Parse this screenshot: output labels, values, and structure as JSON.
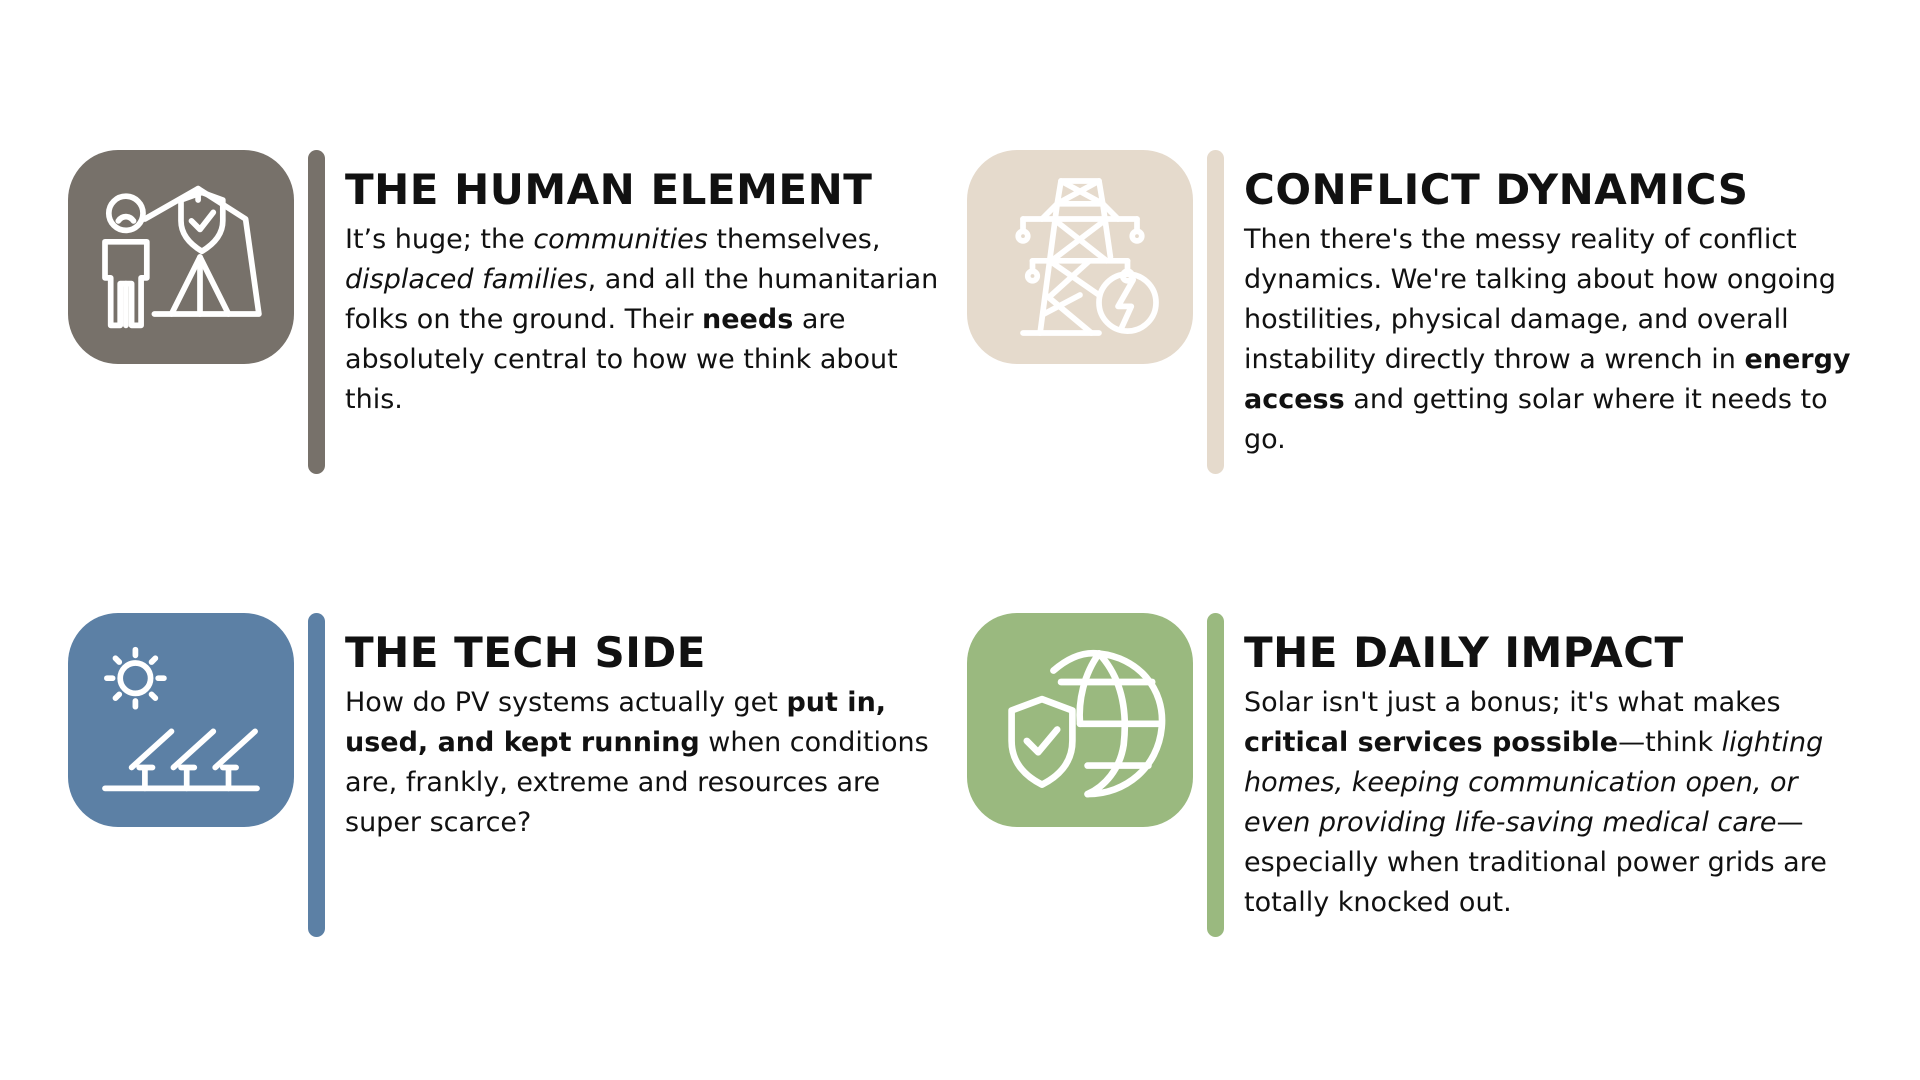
{
  "cards": [
    {
      "id": "human",
      "title": "THE HUMAN ELEMENT",
      "color": "#77716a",
      "icon": "person-shelter-shield-icon",
      "body": [
        {
          "text": "It’s huge; the ",
          "style": "normal"
        },
        {
          "text": "communities",
          "style": "italic"
        },
        {
          "text": " themselves, ",
          "style": "normal"
        },
        {
          "text": "displaced families",
          "style": "italic"
        },
        {
          "text": ", and all the humanitarian folks on the ground. Their ",
          "style": "normal"
        },
        {
          "text": "needs",
          "style": "bold"
        },
        {
          "text": " are absolutely central to how we think about this.",
          "style": "normal"
        }
      ]
    },
    {
      "id": "conflict",
      "title": "CONFLICT DYNAMICS",
      "color": "#e5dacc",
      "icon": "power-tower-lightning-icon",
      "body": [
        {
          "text": "Then there's the messy reality of conflict dynamics. We're talking about how ongoing hostilities, physical damage, and overall instability directly throw a wrench in ",
          "style": "normal"
        },
        {
          "text": "energy access",
          "style": "bold"
        },
        {
          "text": " and getting solar where it needs to go.",
          "style": "normal"
        }
      ]
    },
    {
      "id": "tech",
      "title": "THE TECH SIDE",
      "color": "#5c80a5",
      "icon": "sun-solar-panels-icon",
      "body": [
        {
          "text": "How do PV systems actually get ",
          "style": "normal"
        },
        {
          "text": "put in, used, and kept running",
          "style": "bold"
        },
        {
          "text": " when conditions are, frankly, extreme and resources are super scarce?",
          "style": "normal"
        }
      ]
    },
    {
      "id": "daily",
      "title": "THE DAILY IMPACT",
      "color": "#9ab97f",
      "icon": "globe-shield-check-icon",
      "body": [
        {
          "text": "Solar isn't just a bonus; it's what makes ",
          "style": "normal"
        },
        {
          "text": "critical services possible",
          "style": "bold"
        },
        {
          "text": "—think ",
          "style": "normal"
        },
        {
          "text": "lighting homes, keeping communication open, or even providing life-saving medical care",
          "style": "italic"
        },
        {
          "text": "—especially when traditional power grids are totally knocked out.",
          "style": "normal"
        }
      ]
    }
  ]
}
